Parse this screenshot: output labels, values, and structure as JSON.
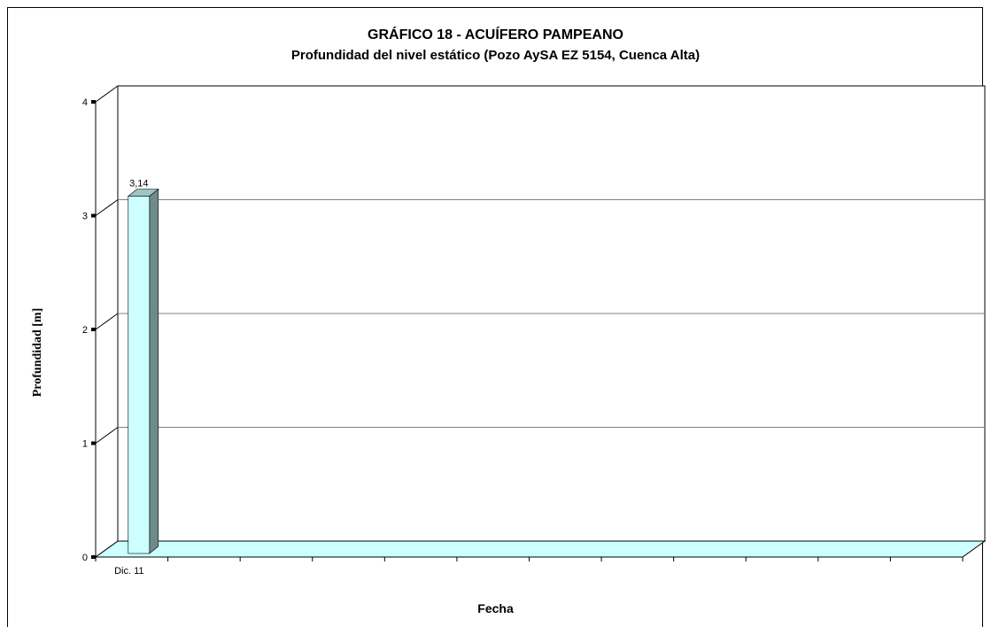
{
  "chart_data": {
    "type": "bar",
    "title": "GRÁFICO 18 - ACUÍFERO PAMPEANO",
    "subtitle": "Profundidad del nivel estático (Pozo AySA EZ 5154, Cuenca Alta)",
    "xlabel": "Fecha",
    "ylabel": "Profundidad [m]",
    "categories": [
      "Dic. 11"
    ],
    "values": [
      3.14
    ],
    "data_labels": [
      "3,14"
    ],
    "ylim": [
      0,
      4
    ],
    "yticks": [
      "0",
      "1",
      "2",
      "3",
      "4"
    ],
    "x_slots": 12,
    "grid": true,
    "legend": "none",
    "style": "3d",
    "colors": {
      "bar_front": "#ccffff",
      "bar_side": "#6e8a8a",
      "bar_top": "#9dc5c5",
      "floor": "#ccffff",
      "gridline": "#808080"
    }
  }
}
